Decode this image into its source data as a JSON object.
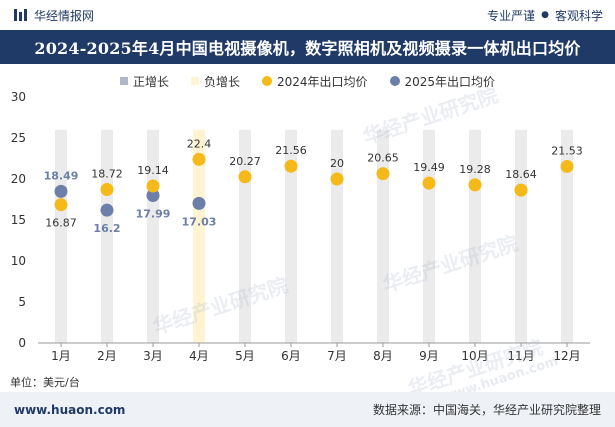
{
  "brand": {
    "name": "华经情报网"
  },
  "tagline": {
    "left": "专业严谨",
    "right": "客观科学"
  },
  "title": "2024-2025年4月中国电视摄像机，数字照相机及视频摄录一体机出口均价",
  "legend": {
    "pos": "正增长",
    "neg": "负增长",
    "s2024": "2024年出口均价",
    "s2025": "2025年出口均价"
  },
  "unit": "单位：美元/台",
  "footer": {
    "site": "www.huaon.com",
    "source": "数据来源：中国海关，华经产业研究院整理"
  },
  "watermarks": {
    "main": "华经产业研究院",
    "url": "www.huaon.com"
  },
  "colors": {
    "s2024": "#f5b919",
    "s2025": "#6c7fa8",
    "pos": "#b0b8c8",
    "neg": "#fff3d2",
    "band": "#ebebeb",
    "title_bg": "#1f3a66"
  },
  "chart_data": {
    "type": "scatter",
    "categories": [
      "1月",
      "2月",
      "3月",
      "4月",
      "5月",
      "6月",
      "7月",
      "8月",
      "9月",
      "10月",
      "11月",
      "12月"
    ],
    "series": [
      {
        "name": "2024年出口均价",
        "values": [
          16.87,
          18.72,
          19.14,
          22.4,
          20.27,
          21.56,
          20,
          20.65,
          19.49,
          19.28,
          18.64,
          21.53
        ]
      },
      {
        "name": "2025年出口均价",
        "values": [
          18.49,
          16.2,
          17.99,
          17.03,
          null,
          null,
          null,
          null,
          null,
          null,
          null,
          null
        ]
      }
    ],
    "growth": {
      "positive": [],
      "negative": [
        3
      ]
    },
    "ylim": [
      0,
      30
    ],
    "yticks": [
      0,
      5,
      10,
      15,
      20,
      25,
      30
    ],
    "band_top": 26,
    "xlabel": "",
    "ylabel": "",
    "legend_position": "top"
  }
}
